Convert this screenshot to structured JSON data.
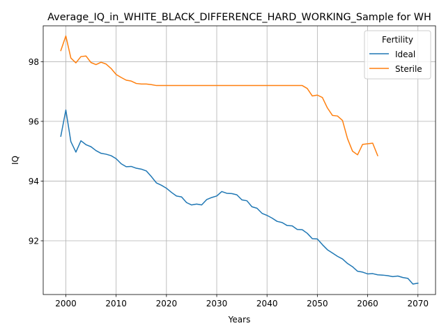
{
  "chart_data": {
    "type": "line",
    "title": "Average_IQ_in_WHITE_BLACK_DIFFERENCE_HARD_WORKING_Sample for WH",
    "xlabel": "Years",
    "ylabel": "IQ",
    "xlim": [
      1995.5,
      2073.5
    ],
    "ylim": [
      90.2,
      99.2
    ],
    "xticks": [
      2000,
      2010,
      2020,
      2030,
      2040,
      2050,
      2060,
      2070
    ],
    "yticks": [
      92,
      94,
      96,
      98
    ],
    "grid": true,
    "legend": {
      "title": "Fertility",
      "placement": "upper right"
    },
    "series": [
      {
        "name": "Ideal",
        "color": "#1f77b4",
        "x": [
          1999,
          2000,
          2001,
          2002,
          2003,
          2004,
          2005,
          2006,
          2007,
          2008,
          2009,
          2010,
          2011,
          2012,
          2013,
          2014,
          2015,
          2016,
          2017,
          2018,
          2019,
          2020,
          2021,
          2022,
          2023,
          2024,
          2025,
          2026,
          2027,
          2028,
          2029,
          2030,
          2031,
          2032,
          2033,
          2034,
          2035,
          2036,
          2037,
          2038,
          2039,
          2040,
          2041,
          2042,
          2043,
          2044,
          2045,
          2046,
          2047,
          2048,
          2049,
          2050,
          2051,
          2052,
          2053,
          2054,
          2055,
          2056,
          2057,
          2058,
          2059,
          2060,
          2061,
          2062,
          2063,
          2064,
          2065,
          2066,
          2067,
          2068,
          2069,
          2070
        ],
        "values": [
          95.5,
          96.38,
          95.32,
          94.97,
          95.35,
          95.22,
          95.15,
          95.02,
          94.93,
          94.9,
          94.85,
          94.75,
          94.58,
          94.48,
          94.49,
          94.43,
          94.4,
          94.34,
          94.15,
          93.94,
          93.86,
          93.76,
          93.62,
          93.5,
          93.47,
          93.28,
          93.2,
          93.23,
          93.2,
          93.38,
          93.45,
          93.5,
          93.65,
          93.59,
          93.58,
          93.54,
          93.37,
          93.34,
          93.14,
          93.09,
          92.92,
          92.85,
          92.76,
          92.65,
          92.61,
          92.51,
          92.5,
          92.38,
          92.37,
          92.25,
          92.07,
          92.06,
          91.87,
          91.7,
          91.59,
          91.48,
          91.39,
          91.24,
          91.13,
          90.98,
          90.95,
          90.89,
          90.9,
          90.86,
          90.85,
          90.83,
          90.8,
          90.82,
          90.77,
          90.74,
          90.55,
          90.58
        ]
      },
      {
        "name": "Sterile",
        "color": "#ff7f0e",
        "x": [
          1999,
          2000,
          2001,
          2002,
          2003,
          2004,
          2005,
          2006,
          2007,
          2008,
          2009,
          2010,
          2011,
          2012,
          2013,
          2014,
          2015,
          2016,
          2017,
          2018,
          2019,
          2020,
          2021,
          2022,
          2023,
          2024,
          2025,
          2026,
          2027,
          2028,
          2029,
          2030,
          2031,
          2032,
          2033,
          2034,
          2035,
          2036,
          2037,
          2038,
          2039,
          2040,
          2041,
          2042,
          2043,
          2044,
          2045,
          2046,
          2047,
          2048,
          2049,
          2050,
          2051,
          2052,
          2053,
          2054,
          2055,
          2056,
          2057,
          2058,
          2059,
          2060,
          2061,
          2062
        ],
        "values": [
          98.37,
          98.86,
          98.12,
          97.96,
          98.17,
          98.19,
          97.97,
          97.9,
          97.98,
          97.92,
          97.77,
          97.57,
          97.47,
          97.38,
          97.35,
          97.27,
          97.25,
          97.25,
          97.23,
          97.2,
          97.2,
          97.2,
          97.2,
          97.2,
          97.2,
          97.2,
          97.2,
          97.2,
          97.2,
          97.2,
          97.2,
          97.2,
          97.2,
          97.2,
          97.2,
          97.2,
          97.2,
          97.2,
          97.2,
          97.2,
          97.2,
          97.2,
          97.2,
          97.2,
          97.2,
          97.2,
          97.2,
          97.2,
          97.2,
          97.1,
          96.85,
          96.88,
          96.8,
          96.45,
          96.2,
          96.18,
          96.03,
          95.42,
          95.0,
          94.88,
          95.23,
          95.25,
          95.27,
          94.85
        ]
      }
    ]
  }
}
